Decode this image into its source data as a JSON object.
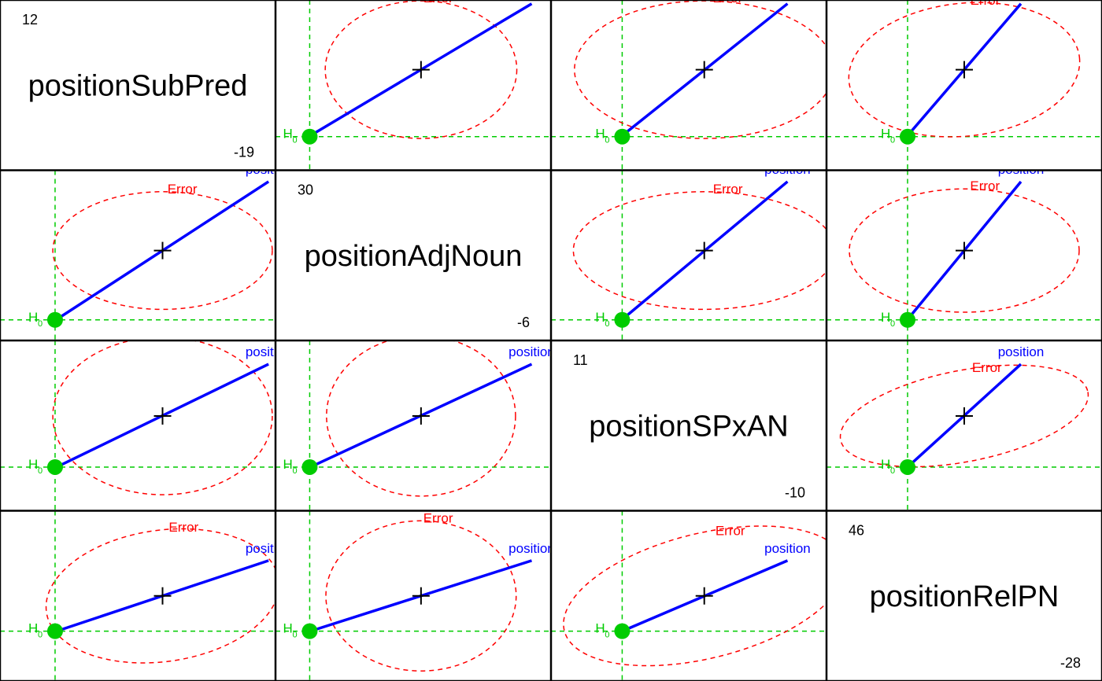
{
  "chart_data": {
    "type": "pairs-HE-plot",
    "variables": [
      {
        "name": "positionSubPred",
        "max": 12,
        "min": -19
      },
      {
        "name": "positionAdjNoun",
        "max": 30,
        "min": -6
      },
      {
        "name": "positionSPxAN",
        "max": 11,
        "min": -10
      },
      {
        "name": "positionRelPN",
        "max": 46,
        "min": -28
      }
    ],
    "labels": {
      "effect": "position",
      "error": "Error",
      "h0_main": "H",
      "h0_sub": "0"
    },
    "colors": {
      "effect": "#0000ff",
      "error": "#ff0000",
      "h0": "#00cc00",
      "frame": "#000000"
    },
    "centroid": {
      "positionSubPred": -0.2,
      "positionAdjNoun": 13.2,
      "positionSPxAN": 1.9,
      "positionRelPN": 9.0
    },
    "h0": {
      "positionSubPred": -14.5,
      "positionAdjNoun": -4.0,
      "positionSPxAN": -5.5,
      "positionRelPN": -9.0
    },
    "effect_line": [
      {
        "positionSubPred": -14.3,
        "positionAdjNoun": -3.9,
        "positionSPxAN": -5.5,
        "positionRelPN": -9.0
      },
      {
        "positionSubPred": 13.9,
        "positionAdjNoun": 30.3,
        "positionSPxAN": 9.4,
        "positionRelPN": 27.0
      }
    ],
    "error_ellipses": [
      {
        "row": 0,
        "col": 1,
        "cx": 13.2,
        "cy": -0.2,
        "rx": 14.8,
        "ry": 14.7,
        "rot": 0
      },
      {
        "row": 0,
        "col": 2,
        "cx": 1.9,
        "cy": -0.2,
        "rx": 11.7,
        "ry": 14.7,
        "rot": 0
      },
      {
        "row": 0,
        "col": 3,
        "cx": 9.0,
        "cy": -0.2,
        "rx": 36.8,
        "ry": 14.2,
        "rot": -6
      },
      {
        "row": 1,
        "col": 0,
        "cx": -0.2,
        "cy": 13.2,
        "rx": 14.6,
        "ry": 14.6,
        "rot": 0
      },
      {
        "row": 1,
        "col": 2,
        "cx": 1.9,
        "cy": 13.2,
        "rx": 11.8,
        "ry": 14.6,
        "rot": 0
      },
      {
        "row": 1,
        "col": 3,
        "cx": 9.0,
        "cy": 13.2,
        "rx": 36.5,
        "ry": 15.3,
        "rot": 0
      },
      {
        "row": 2,
        "col": 0,
        "cx": -0.2,
        "cy": 1.9,
        "rx": 14.6,
        "ry": 11.4,
        "rot": 0
      },
      {
        "row": 2,
        "col": 1,
        "cx": 13.2,
        "cy": 1.9,
        "rx": 14.6,
        "ry": 11.6,
        "rot": 0
      },
      {
        "row": 2,
        "col": 3,
        "cx": 9.0,
        "cy": 1.9,
        "rx": 40.0,
        "ry": 6.6,
        "rot": -11
      },
      {
        "row": 3,
        "col": 0,
        "cx": -0.2,
        "cy": 9.0,
        "rx": 15.6,
        "ry": 33.5,
        "rot": -8
      },
      {
        "row": 3,
        "col": 1,
        "cx": 13.2,
        "cy": 9.0,
        "rx": 14.7,
        "ry": 38.3,
        "rot": 0
      },
      {
        "row": 3,
        "col": 2,
        "cx": 1.9,
        "cy": 9.0,
        "rx": 13.0,
        "ry": 31.8,
        "rot": -14
      }
    ]
  }
}
